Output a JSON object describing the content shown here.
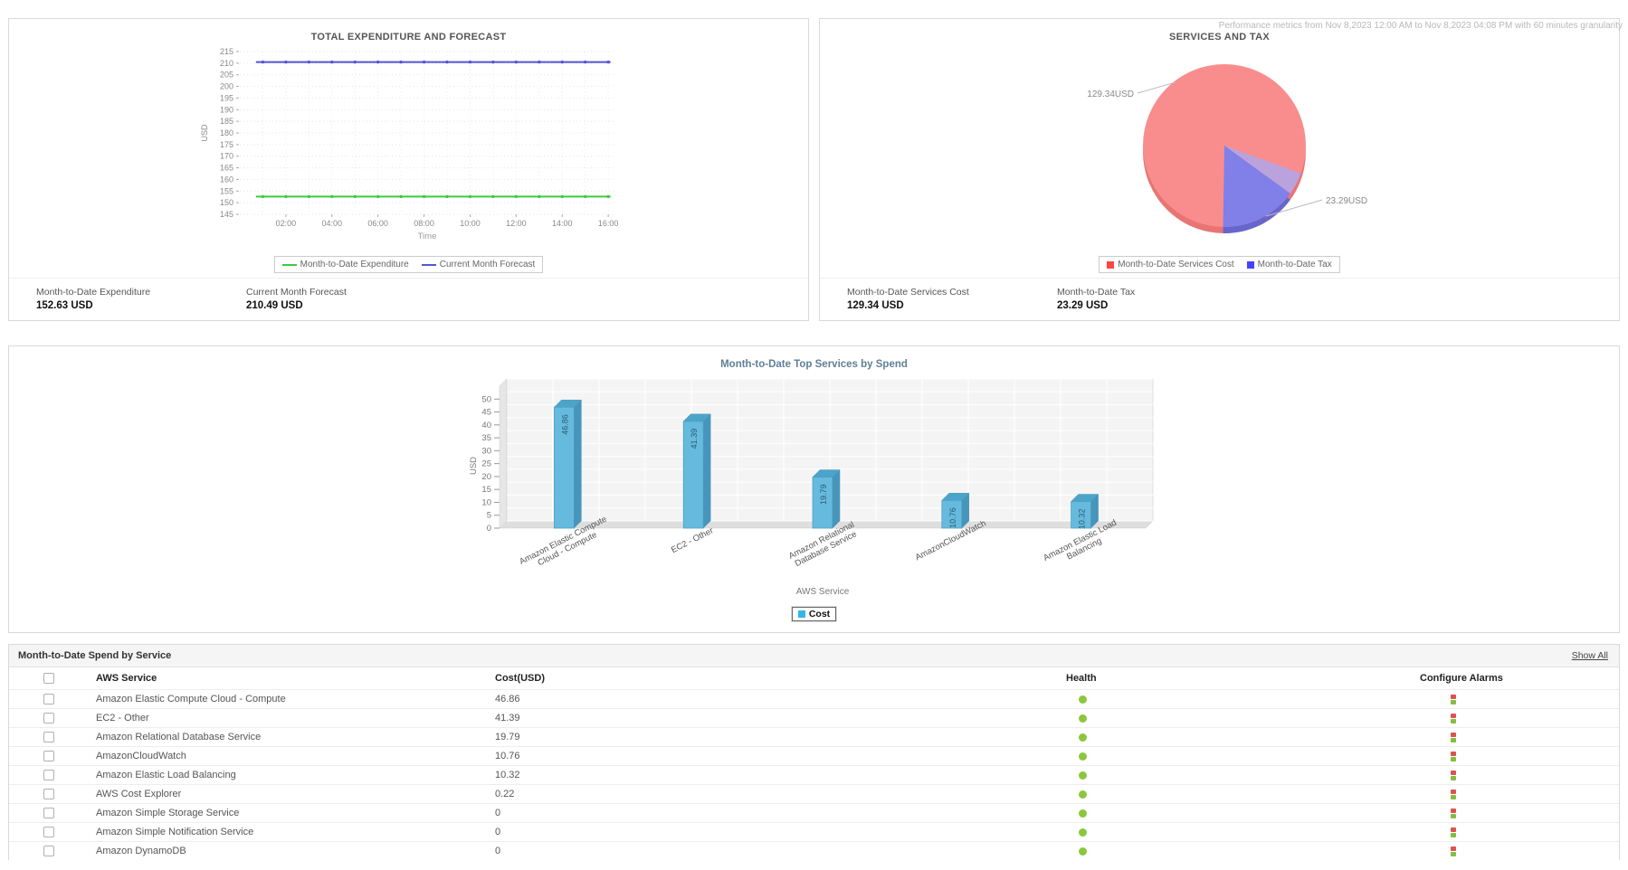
{
  "page": {
    "performance_note": "Performance metrics from Nov 8,2023 12:00 AM to Nov 8,2023 04:08 PM with 60 minutes granularity"
  },
  "expenditure_panel": {
    "stats": [
      {
        "label": "Month-to-Date Expenditure",
        "value": "152.63 USD"
      },
      {
        "label": "Current Month Forecast",
        "value": "210.49 USD"
      }
    ]
  },
  "services_tax_panel": {
    "stats": [
      {
        "label": "Month-to-Date Services Cost",
        "value": "129.34 USD"
      },
      {
        "label": "Month-to-Date Tax",
        "value": "23.29 USD"
      }
    ]
  },
  "spend_table": {
    "title": "Month-to-Date Spend by Service",
    "show_all_label": "Show All",
    "columns": [
      "AWS Service",
      "Cost(USD)",
      "Health",
      "Configure Alarms"
    ],
    "rows": [
      {
        "service": "Amazon Elastic Compute Cloud - Compute",
        "cost": "46.86",
        "health": "green"
      },
      {
        "service": "EC2 - Other",
        "cost": "41.39",
        "health": "green"
      },
      {
        "service": "Amazon Relational Database Service",
        "cost": "19.79",
        "health": "green"
      },
      {
        "service": "AmazonCloudWatch",
        "cost": "10.76",
        "health": "green"
      },
      {
        "service": "Amazon Elastic Load Balancing",
        "cost": "10.32",
        "health": "green"
      },
      {
        "service": "AWS Cost Explorer",
        "cost": "0.22",
        "health": "green"
      },
      {
        "service": "Amazon Simple Storage Service",
        "cost": "0",
        "health": "green"
      },
      {
        "service": "Amazon Simple Notification Service",
        "cost": "0",
        "health": "green"
      },
      {
        "service": "Amazon DynamoDB",
        "cost": "0",
        "health": "green"
      }
    ]
  },
  "chart_data": [
    {
      "type": "line",
      "title": "TOTAL EXPENDITURE AND FORECAST",
      "xlabel": "Time",
      "ylabel": "USD",
      "ylim": [
        145,
        215
      ],
      "ytick_step": 5,
      "x_ticks": [
        "02:00",
        "04:00",
        "06:00",
        "08:00",
        "10:00",
        "12:00",
        "14:00",
        "16:00"
      ],
      "x_hours_range": [
        0.7,
        16.1
      ],
      "grid": true,
      "legend_position": "bottom",
      "series": [
        {
          "name": "Month-to-Date Expenditure",
          "value": 152.63,
          "color": "#3fca3f"
        },
        {
          "name": "Current Month Forecast",
          "value": 210.49,
          "color": "#5555d5"
        }
      ]
    },
    {
      "type": "pie",
      "title": "SERVICES AND TAX",
      "legend_position": "bottom",
      "slices": [
        {
          "name": "Month-to-Date Services Cost",
          "value": 129.34,
          "label": "129.34USD",
          "color": "#f98d8d"
        },
        {
          "name": "Month-to-Date Tax",
          "value": 23.29,
          "label": "23.29USD",
          "color": "#8080e8"
        }
      ]
    },
    {
      "type": "bar",
      "title": "Month-to-Date Top Services by Spend",
      "xlabel": "AWS Service",
      "ylabel": "USD",
      "ylim": [
        0,
        50
      ],
      "ytick_step": 5,
      "grid": true,
      "legend": [
        "Cost"
      ],
      "bar_color": "#66bade",
      "categories": [
        "Amazon Elastic Compute Cloud - Compute",
        "EC2 - Other",
        "Amazon Relational Database Service",
        "AmazonCloudWatch",
        "Amazon Elastic Load Balancing"
      ],
      "values": [
        46.86,
        41.39,
        19.79,
        10.76,
        10.32
      ]
    }
  ],
  "colors": {
    "health_green": "#8cc63e",
    "alarm_red": "#d9534f",
    "alarm_green": "#86bd3e",
    "bar_title": "#5f7f96"
  }
}
